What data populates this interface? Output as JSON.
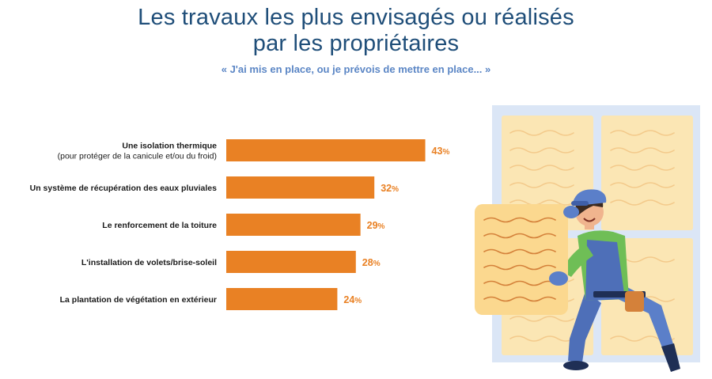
{
  "title": {
    "line1": "Les travaux les plus envisagés ou réalisés",
    "line2": "par les propriétaires"
  },
  "subtitle": "« J'ai mis en place, ou je prévois de mettre en place... »",
  "colors": {
    "title": "#1f4e79",
    "subtitle": "#5b86c5",
    "bar": "#e98124",
    "value": "#e98124",
    "label": "#1a1a1a"
  },
  "chart_data": {
    "type": "bar",
    "orientation": "horizontal",
    "categories": [
      [
        "Une isolation thermique",
        "(pour protéger de la canicule et/ou du froid)"
      ],
      [
        "Un système de récupération des eaux pluviales"
      ],
      [
        "Le renforcement de la toiture"
      ],
      [
        "L'installation de volets/brise-soleil"
      ],
      [
        "La plantation de végétation en extérieur"
      ]
    ],
    "values": [
      43,
      32,
      29,
      28,
      24
    ],
    "value_suffix": "%",
    "xlim": [
      0,
      100
    ],
    "grid": false,
    "legend": "none"
  },
  "illustration": {
    "subject": "worker-holding-insulation-panel"
  }
}
